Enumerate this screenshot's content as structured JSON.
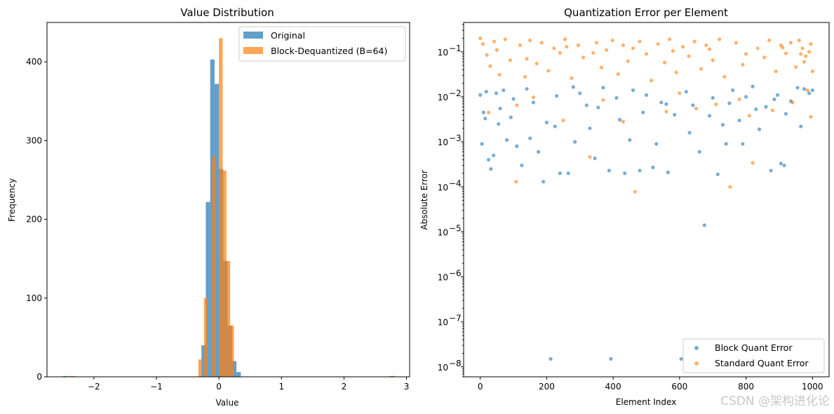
{
  "colors": {
    "blue": "#1f77b4",
    "orange": "#ff7f0e"
  },
  "chart_data": [
    {
      "type": "bar",
      "subtype": "histogram",
      "title": "Value Distribution",
      "xlabel": "Value",
      "ylabel": "Frequency",
      "xlim": [
        -2.75,
        3.05
      ],
      "ylim": [
        0,
        450
      ],
      "xticks": [
        -2,
        -1,
        0,
        1,
        2,
        3
      ],
      "xtick_labels": [
        "−2",
        "−1",
        "0",
        "1",
        "2",
        "3"
      ],
      "yticks": [
        0,
        100,
        200,
        300,
        400
      ],
      "legend_position": "top-right",
      "series": [
        {
          "name": "Original",
          "color": "#1f77b4",
          "opacity": 0.7,
          "bins": [
            {
              "x0": -2.5,
              "x1": -2.42,
              "count": 1
            },
            {
              "x0": -0.28,
              "x1": -0.21,
              "count": 40
            },
            {
              "x0": -0.21,
              "x1": -0.14,
              "count": 222
            },
            {
              "x0": -0.14,
              "x1": -0.07,
              "count": 403
            },
            {
              "x0": -0.07,
              "x1": 0.0,
              "count": 372
            },
            {
              "x0": 0.0,
              "x1": 0.07,
              "count": 264
            },
            {
              "x0": 0.07,
              "x1": 0.14,
              "count": 147
            },
            {
              "x0": 0.14,
              "x1": 0.21,
              "count": 65
            },
            {
              "x0": 0.21,
              "x1": 0.28,
              "count": 20
            },
            {
              "x0": 0.28,
              "x1": 0.35,
              "count": 6
            },
            {
              "x0": 2.74,
              "x1": 2.81,
              "count": 1
            }
          ]
        },
        {
          "name": "Block-Dequantized (B=64)",
          "color": "#ff7f0e",
          "opacity": 0.7,
          "bins": [
            {
              "x0": -2.4,
              "x1": -2.3,
              "count": 1
            },
            {
              "x0": -0.33,
              "x1": -0.27,
              "count": 22
            },
            {
              "x0": -0.24,
              "x1": -0.18,
              "count": 100
            },
            {
              "x0": -0.11,
              "x1": -0.05,
              "count": 280
            },
            {
              "x0": 0.0,
              "x1": 0.06,
              "count": 430
            },
            {
              "x0": 0.06,
              "x1": 0.12,
              "count": 262
            },
            {
              "x0": 0.12,
              "x1": 0.18,
              "count": 147
            },
            {
              "x0": 0.18,
              "x1": 0.24,
              "count": 65
            },
            {
              "x0": 2.73,
              "x1": 2.8,
              "count": 1
            }
          ]
        }
      ]
    },
    {
      "type": "scatter",
      "title": "Quantization Error per Element",
      "xlabel": "Element Index",
      "ylabel": "Absolute Error",
      "xlim": [
        -50,
        1050
      ],
      "y_scale": "log",
      "ylim": [
        6e-09,
        0.45
      ],
      "xticks": [
        0,
        200,
        400,
        600,
        800,
        1000
      ],
      "yticks": [
        1e-08,
        1e-07,
        1e-06,
        1e-05,
        0.0001,
        0.001,
        0.01,
        0.1
      ],
      "ytick_labels": [
        {
          "base": "10",
          "exp": "−8"
        },
        {
          "base": "10",
          "exp": "−7"
        },
        {
          "base": "10",
          "exp": "−6"
        },
        {
          "base": "10",
          "exp": "−5"
        },
        {
          "base": "10",
          "exp": "−4"
        },
        {
          "base": "10",
          "exp": "−3"
        },
        {
          "base": "10",
          "exp": "−2"
        },
        {
          "base": "10",
          "exp": "−1"
        }
      ],
      "legend_position": "bottom-right",
      "series": [
        {
          "name": "Block Quant Error",
          "color": "#1f77b4",
          "points": [
            [
              0,
              0.011
            ],
            [
              5,
              0.0009
            ],
            [
              10,
              0.0045
            ],
            [
              18,
              0.013
            ],
            [
              25,
              0.0004
            ],
            [
              32,
              0.00025
            ],
            [
              40,
              0.0005
            ],
            [
              48,
              0.012
            ],
            [
              55,
              0.0025
            ],
            [
              70,
              0.014
            ],
            [
              80,
              0.0011
            ],
            [
              92,
              0.0035
            ],
            [
              110,
              0.0008
            ],
            [
              125,
              0.0003
            ],
            [
              140,
              0.015
            ],
            [
              160,
              0.0075
            ],
            [
              175,
              0.0006
            ],
            [
              190,
              0.00013
            ],
            [
              212,
              1.5e-08
            ],
            [
              225,
              0.0022
            ],
            [
              240,
              0.0002
            ],
            [
              265,
              0.0002
            ],
            [
              285,
              0.001
            ],
            [
              300,
              0.012
            ],
            [
              320,
              0.0065
            ],
            [
              345,
              0.00043
            ],
            [
              370,
              0.016
            ],
            [
              388,
              0.00023
            ],
            [
              393,
              1.5e-08
            ],
            [
              410,
              0.0095
            ],
            [
              435,
              0.0002
            ],
            [
              460,
              0.014
            ],
            [
              480,
              0.00023
            ],
            [
              500,
              0.011
            ],
            [
              520,
              0.00027
            ],
            [
              545,
              0.0075
            ],
            [
              565,
              0.00021
            ],
            [
              605,
              1.5e-08
            ],
            [
              620,
              0.013
            ],
            [
              640,
              0.0065
            ],
            [
              675,
              1.4e-05
            ],
            [
              700,
              0.0095
            ],
            [
              715,
              0.00019
            ],
            [
              740,
              0.0009
            ],
            [
              760,
              0.014
            ],
            [
              780,
              0.003
            ],
            [
              800,
              0.01
            ],
            [
              820,
              0.017
            ],
            [
              860,
              0.006
            ],
            [
              875,
              0.00023
            ],
            [
              895,
              0.011
            ],
            [
              905,
              0.00033
            ],
            [
              915,
              0.0003
            ],
            [
              935,
              0.008
            ],
            [
              955,
              0.016
            ],
            [
              975,
              0.015
            ],
            [
              990,
              0.012
            ],
            [
              1000,
              0.014
            ],
            [
              60,
              0.0055
            ],
            [
              150,
              0.0012
            ],
            [
              230,
              0.0105
            ],
            [
              330,
              0.002
            ],
            [
              450,
              0.0011
            ],
            [
              530,
              0.0009
            ],
            [
              585,
              0.004
            ],
            [
              660,
              0.0006
            ],
            [
              730,
              0.0024
            ],
            [
              790,
              0.0009
            ],
            [
              840,
              0.0019
            ],
            [
              920,
              0.0042
            ],
            [
              15,
              0.0033
            ],
            [
              100,
              0.009
            ],
            [
              200,
              0.0027
            ],
            [
              280,
              0.0165
            ],
            [
              355,
              0.0058
            ],
            [
              420,
              0.0031
            ],
            [
              490,
              0.0045
            ],
            [
              560,
              0.0069
            ],
            [
              630,
              0.0016
            ],
            [
              690,
              0.0038
            ],
            [
              750,
              0.0072
            ],
            [
              830,
              0.0053
            ],
            [
              885,
              0.0088
            ],
            [
              965,
              0.0022
            ]
          ]
        },
        {
          "name": "Standard Quant Error",
          "color": "#ff7f0e",
          "points": [
            [
              0,
              0.2
            ],
            [
              8,
              0.15
            ],
            [
              20,
              0.085
            ],
            [
              30,
              0.048
            ],
            [
              42,
              0.17
            ],
            [
              58,
              0.031
            ],
            [
              75,
              0.19
            ],
            [
              90,
              0.065
            ],
            [
              108,
              0.00013
            ],
            [
              120,
              0.14
            ],
            [
              135,
              0.028
            ],
            [
              150,
              0.18
            ],
            [
              170,
              0.055
            ],
            [
              185,
              0.16
            ],
            [
              205,
              0.038
            ],
            [
              222,
              0.12
            ],
            [
              240,
              0.095
            ],
            [
              255,
              0.19
            ],
            [
              275,
              0.026
            ],
            [
              295,
              0.14
            ],
            [
              310,
              0.075
            ],
            [
              330,
              0.00046
            ],
            [
              350,
              0.16
            ],
            [
              365,
              0.045
            ],
            [
              380,
              0.11
            ],
            [
              398,
              0.18
            ],
            [
              415,
              0.032
            ],
            [
              430,
              0.14
            ],
            [
              445,
              0.062
            ],
            [
              466,
              7.8e-05
            ],
            [
              480,
              0.17
            ],
            [
              500,
              0.09
            ],
            [
              515,
              0.023
            ],
            [
              535,
              0.15
            ],
            [
              555,
              0.058
            ],
            [
              570,
              0.19
            ],
            [
              590,
              0.035
            ],
            [
              610,
              0.13
            ],
            [
              628,
              0.08
            ],
            [
              645,
              0.17
            ],
            [
              665,
              0.042
            ],
            [
              680,
              0.14
            ],
            [
              700,
              0.065
            ],
            [
              720,
              0.19
            ],
            [
              735,
              0.028
            ],
            [
              752,
              0.0001
            ],
            [
              770,
              0.16
            ],
            [
              790,
              0.052
            ],
            [
              810,
              0.0038
            ],
            [
              820,
              0.00034
            ],
            [
              835,
              0.12
            ],
            [
              855,
              0.075
            ],
            [
              870,
              0.18
            ],
            [
              890,
              0.037
            ],
            [
              905,
              0.14
            ],
            [
              920,
              0.092
            ],
            [
              935,
              0.16
            ],
            [
              950,
              0.046
            ],
            [
              960,
              0.18
            ],
            [
              970,
              0.12
            ],
            [
              980,
              0.08
            ],
            [
              990,
              0.1
            ],
            [
              1000,
              0.037
            ],
            [
              995,
              0.0036
            ],
            [
              985,
              0.014
            ],
            [
              975,
              0.06
            ],
            [
              965,
              0.09
            ],
            [
              25,
              0.0045
            ],
            [
              110,
              0.0065
            ],
            [
              250,
              0.003
            ],
            [
              370,
              0.0085
            ],
            [
              560,
              0.0047
            ],
            [
              650,
              0.0055
            ],
            [
              710,
              0.0068
            ],
            [
              880,
              0.005
            ],
            [
              940,
              0.0075
            ],
            [
              160,
              0.0098
            ],
            [
              430,
              0.0028
            ],
            [
              600,
              0.012
            ],
            [
              780,
              0.0088
            ],
            [
              50,
              0.11
            ],
            [
              140,
              0.07
            ],
            [
              260,
              0.13
            ],
            [
              340,
              0.095
            ],
            [
              460,
              0.12
            ],
            [
              580,
              0.105
            ],
            [
              690,
              0.115
            ],
            [
              800,
              0.09
            ],
            [
              910,
              0.125
            ],
            [
              995,
              0.15
            ]
          ]
        }
      ]
    }
  ],
  "watermark": "CSDN @架构进化论"
}
